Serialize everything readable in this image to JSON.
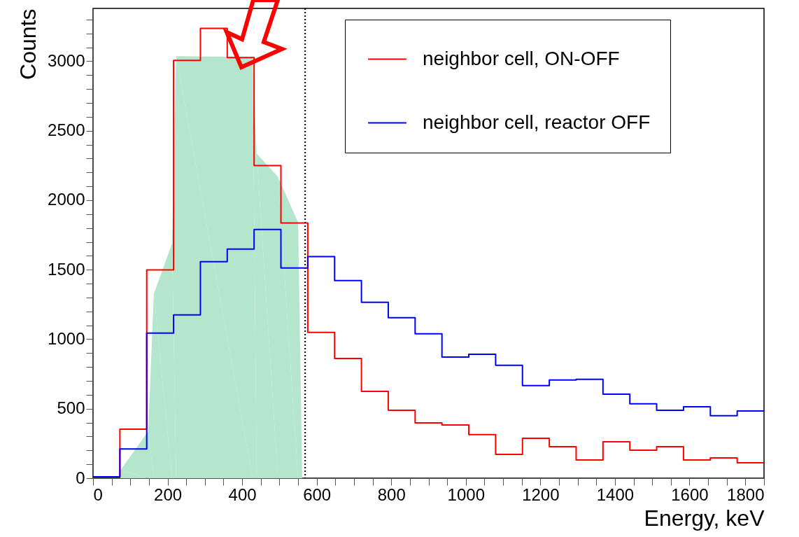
{
  "chart_data": {
    "type": "histogram",
    "xlabel": "Energy, keV",
    "ylabel": "Counts",
    "bins": [
      0,
      72,
      144,
      216,
      288,
      360,
      432,
      504,
      576,
      648,
      720,
      792,
      864,
      936,
      1008,
      1080,
      1152,
      1224,
      1296,
      1368,
      1440,
      1512,
      1584,
      1656,
      1728,
      1800
    ],
    "series": [
      {
        "type": "area",
        "color": "#b3e6cc",
        "x": [
          73,
          148,
          163,
          212,
          223,
          428,
          439,
          496,
          550,
          561
        ],
        "values": [
          55,
          338,
          1326,
          1689,
          3036,
          3030,
          2335,
          2168,
          1841,
          66
        ]
      },
      {
        "name": "neighbor cell, ON-OFF",
        "color": "#ff0000",
        "values": [
          10,
          353,
          1498,
          3006,
          3237,
          3026,
          2249,
          1836,
          1049,
          862,
          625,
          489,
          398,
          383,
          313,
          171,
          287,
          227,
          131,
          262,
          202,
          227,
          131,
          146,
          111
        ]
      },
      {
        "name": "neighbor cell, reactor OFF",
        "color": "#0000ff",
        "values": [
          10,
          210,
          1044,
          1175,
          1558,
          1649,
          1790,
          1513,
          1594,
          1422,
          1266,
          1155,
          1039,
          872,
          892,
          812,
          666,
          706,
          711,
          605,
          535,
          489,
          514,
          449,
          484
        ]
      }
    ],
    "xlim": [
      0,
      1800
    ],
    "xticks": [
      0,
      {
        "value": 50,
        "label": null
      },
      {
        "value": 100,
        "label": null
      },
      {
        "value": 150,
        "label": null
      },
      200,
      {
        "value": 250,
        "label": null
      },
      {
        "value": 300,
        "label": null
      },
      {
        "value": 350,
        "label": null
      },
      400,
      {
        "value": 450,
        "label": null
      },
      {
        "value": 500,
        "label": null
      },
      {
        "value": 550,
        "label": null
      },
      600,
      {
        "value": 650,
        "label": null
      },
      {
        "value": 700,
        "label": null
      },
      {
        "value": 750,
        "label": null
      },
      800,
      {
        "value": 850,
        "label": null
      },
      {
        "value": 900,
        "label": null
      },
      {
        "value": 950,
        "label": null
      },
      1000,
      {
        "value": 1050,
        "label": null
      },
      {
        "value": 1100,
        "label": null
      },
      {
        "value": 1150,
        "label": null
      },
      1200,
      {
        "value": 1250,
        "label": null
      },
      {
        "value": 1300,
        "label": null
      },
      {
        "value": 1350,
        "label": null
      },
      1400,
      {
        "value": 1450,
        "label": null
      },
      {
        "value": 1500,
        "label": null
      },
      {
        "value": 1550,
        "label": null
      },
      1600,
      {
        "value": 1650,
        "label": null
      },
      {
        "value": 1700,
        "label": null
      },
      {
        "value": 1750,
        "label": null
      },
      1800
    ],
    "ylim": [
      0,
      3380
    ],
    "yticks": [
      0,
      {
        "value": 100,
        "label": null
      },
      {
        "value": 200,
        "label": null
      },
      {
        "value": 300,
        "label": null
      },
      {
        "value": 400,
        "label": null
      },
      500,
      {
        "value": 600,
        "label": null
      },
      {
        "value": 700,
        "label": null
      },
      {
        "value": 800,
        "label": null
      },
      {
        "value": 900,
        "label": null
      },
      1000,
      {
        "value": 1100,
        "label": null
      },
      {
        "value": 1200,
        "label": null
      },
      {
        "value": 1300,
        "label": null
      },
      {
        "value": 1400,
        "label": null
      },
      1500,
      {
        "value": 1600,
        "label": null
      },
      {
        "value": 1700,
        "label": null
      },
      {
        "value": 1800,
        "label": null
      },
      {
        "value": 1900,
        "label": null
      },
      2000,
      {
        "value": 2100,
        "label": null
      },
      {
        "value": 2200,
        "label": null
      },
      {
        "value": 2300,
        "label": null
      },
      {
        "value": 2400,
        "label": null
      },
      2500,
      {
        "value": 2600,
        "label": null
      },
      {
        "value": 2700,
        "label": null
      },
      {
        "value": 2800,
        "label": null
      },
      {
        "value": 2900,
        "label": null
      },
      3000,
      {
        "value": 3100,
        "label": null
      },
      {
        "value": 3200,
        "label": null
      },
      {
        "value": 3300,
        "label": null
      }
    ],
    "ref_lines": [
      {
        "axis": "x",
        "value": 569,
        "color": "#000000",
        "line_style": "dotted"
      }
    ],
    "legend": "top right"
  }
}
